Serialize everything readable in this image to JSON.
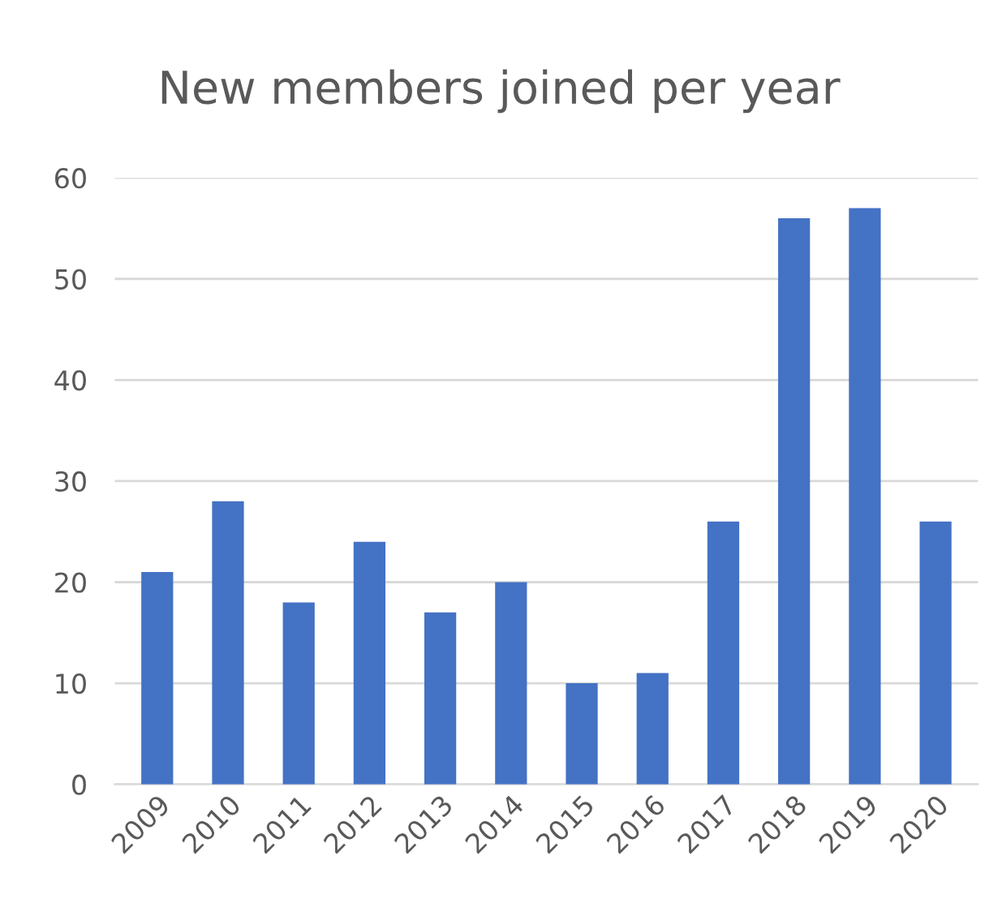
{
  "chart_data": {
    "type": "bar",
    "title": "New members joined per year",
    "categories": [
      "2009",
      "2010",
      "2011",
      "2012",
      "2013",
      "2014",
      "2015",
      "2016",
      "2017",
      "2018",
      "2019",
      "2020"
    ],
    "values": [
      21,
      28,
      18,
      24,
      17,
      20,
      10,
      11,
      26,
      56,
      57,
      26
    ],
    "color": "#4472c4",
    "ylim": [
      0,
      60
    ],
    "yticks": [
      0,
      10,
      20,
      30,
      40,
      50,
      60
    ],
    "grid": "y"
  }
}
